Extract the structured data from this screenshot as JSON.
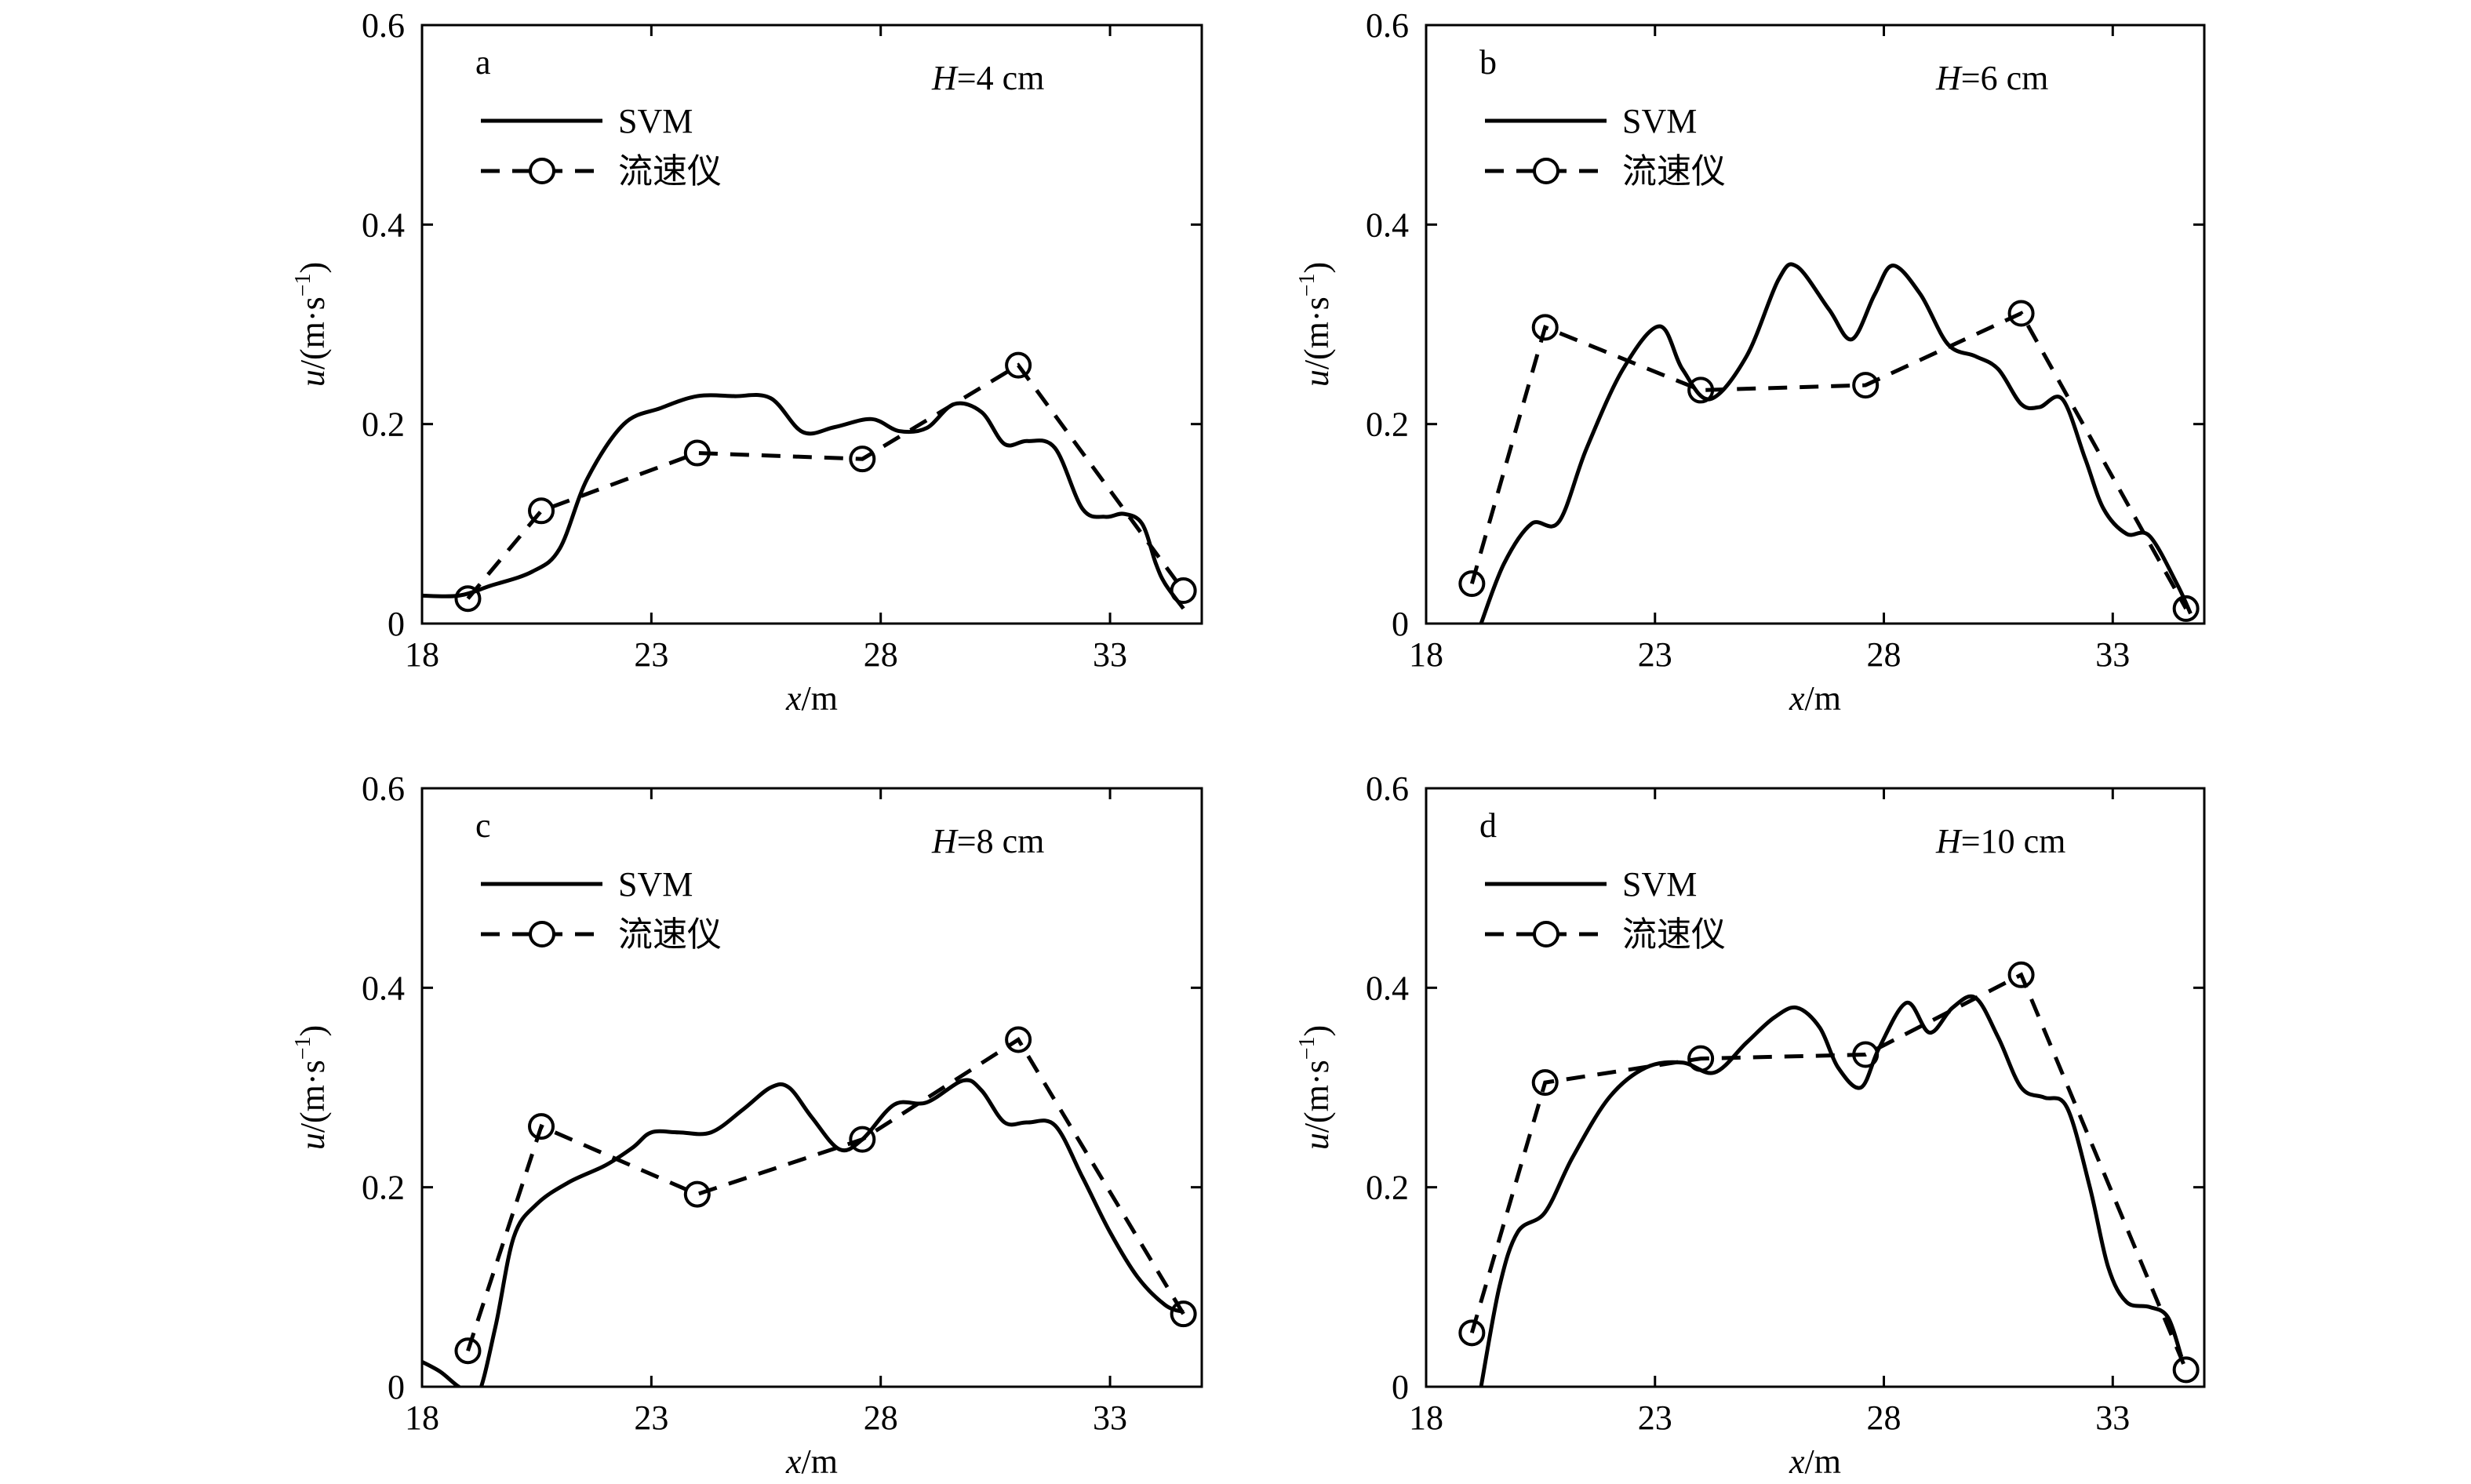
{
  "chart_data": [
    {
      "type": "line",
      "panel_label": "a",
      "annotation": {
        "var": "H",
        "text": "=4 cm"
      },
      "xlabel": {
        "var": "x",
        "unit": "/m"
      },
      "ylabel": {
        "var": "u",
        "unit": "/(m·s",
        "sup": "−1",
        "close": ")"
      },
      "xlim": [
        18,
        35
      ],
      "ylim": [
        0,
        0.6
      ],
      "xticks": [
        "18",
        "23",
        "28",
        "33"
      ],
      "xtick_values": [
        18,
        23,
        28,
        33
      ],
      "yticks": [
        "0",
        "0.2",
        "0.4",
        "0.6"
      ],
      "ytick_values": [
        0,
        0.2,
        0.4,
        0.6
      ],
      "legend": {
        "placement": "top-left",
        "entries": [
          "SVM",
          "流速仪"
        ]
      },
      "series": [
        {
          "name": "SVM",
          "style": "solid",
          "x": [
            18.0,
            18.8,
            19.5,
            20.4,
            21.0,
            21.6,
            22.4,
            23.2,
            24.0,
            24.8,
            25.6,
            26.3,
            27.0,
            27.8,
            28.4,
            29.0,
            29.6,
            30.2,
            30.7,
            31.2,
            31.8,
            32.4,
            32.9,
            33.3,
            33.7,
            34.0,
            34.2,
            34.6
          ],
          "y": [
            0.028,
            0.028,
            0.038,
            0.052,
            0.075,
            0.145,
            0.2,
            0.216,
            0.228,
            0.228,
            0.226,
            0.192,
            0.197,
            0.205,
            0.193,
            0.196,
            0.22,
            0.212,
            0.18,
            0.183,
            0.176,
            0.115,
            0.107,
            0.11,
            0.1,
            0.06,
            0.04,
            0.015
          ]
        },
        {
          "name": "流速仪",
          "style": "dashed",
          "marker": "circle",
          "x": [
            19.0,
            20.6,
            24.0,
            27.6,
            31.0,
            34.6
          ],
          "y": [
            0.025,
            0.113,
            0.171,
            0.165,
            0.259,
            0.033
          ]
        }
      ]
    },
    {
      "type": "line",
      "panel_label": "b",
      "annotation": {
        "var": "H",
        "text": "=6 cm"
      },
      "xlabel": {
        "var": "x",
        "unit": "/m"
      },
      "ylabel": {
        "var": "u",
        "unit": "/(m·s",
        "sup": "−1",
        "close": ")"
      },
      "xlim": [
        18,
        35
      ],
      "ylim": [
        0,
        0.6
      ],
      "xticks": [
        "18",
        "23",
        "28",
        "33"
      ],
      "xtick_values": [
        18,
        23,
        28,
        33
      ],
      "yticks": [
        "0",
        "0.2",
        "0.4",
        "0.6"
      ],
      "ytick_values": [
        0,
        0.2,
        0.4,
        0.6
      ],
      "legend": {
        "placement": "top-left",
        "entries": [
          "SVM",
          "流速仪"
        ]
      },
      "series": [
        {
          "name": "SVM",
          "style": "solid",
          "x": [
            19.2,
            19.7,
            20.3,
            20.9,
            21.5,
            22.3,
            23.1,
            23.6,
            24.2,
            25.0,
            25.7,
            26.1,
            26.8,
            27.3,
            27.8,
            28.2,
            28.8,
            29.4,
            30.0,
            30.5,
            31.0,
            31.4,
            31.9,
            32.4,
            32.8,
            33.3,
            33.8,
            34.4,
            34.7
          ],
          "y": [
            0.0,
            0.06,
            0.1,
            0.102,
            0.175,
            0.255,
            0.298,
            0.255,
            0.225,
            0.268,
            0.345,
            0.358,
            0.315,
            0.285,
            0.33,
            0.359,
            0.33,
            0.28,
            0.268,
            0.255,
            0.22,
            0.217,
            0.225,
            0.165,
            0.115,
            0.09,
            0.088,
            0.04,
            0.01
          ]
        },
        {
          "name": "流速仪",
          "style": "dashed",
          "marker": "circle",
          "x": [
            19.0,
            20.6,
            24.0,
            27.6,
            31.0,
            34.6
          ],
          "y": [
            0.04,
            0.297,
            0.234,
            0.239,
            0.311,
            0.015
          ]
        }
      ]
    },
    {
      "type": "line",
      "panel_label": "c",
      "annotation": {
        "var": "H",
        "text": "=8 cm"
      },
      "xlabel": {
        "var": "x",
        "unit": "/m"
      },
      "ylabel": {
        "var": "u",
        "unit": "/(m·s",
        "sup": "−1",
        "close": ")"
      },
      "xlim": [
        18,
        35
      ],
      "ylim": [
        0,
        0.6
      ],
      "xticks": [
        "18",
        "23",
        "28",
        "33"
      ],
      "xtick_values": [
        18,
        23,
        28,
        33
      ],
      "yticks": [
        "0",
        "0.2",
        "0.4",
        "0.6"
      ],
      "ytick_values": [
        0,
        0.2,
        0.4,
        0.6
      ],
      "legend": {
        "placement": "top-left",
        "entries": [
          "SVM",
          "流速仪"
        ]
      },
      "series": [
        {
          "name": "SVM",
          "style": "solid",
          "x": [
            18.0,
            18.4,
            18.8,
            19.2,
            19.6,
            20.0,
            20.5,
            21.2,
            22.0,
            22.6,
            23.0,
            23.6,
            24.3,
            25.0,
            25.6,
            26.0,
            26.5,
            27.1,
            27.6,
            28.3,
            29.0,
            29.8,
            30.2,
            30.7,
            31.2,
            31.8,
            32.4,
            33.0,
            33.6,
            34.2,
            34.6
          ],
          "y": [
            0.025,
            0.015,
            0.0,
            -0.01,
            0.06,
            0.15,
            0.183,
            0.205,
            0.222,
            0.24,
            0.255,
            0.255,
            0.255,
            0.278,
            0.3,
            0.3,
            0.27,
            0.238,
            0.248,
            0.283,
            0.285,
            0.307,
            0.297,
            0.265,
            0.265,
            0.262,
            0.21,
            0.155,
            0.11,
            0.082,
            0.075
          ]
        },
        {
          "name": "流速仪",
          "style": "dashed",
          "marker": "circle",
          "x": [
            19.0,
            20.6,
            24.0,
            27.6,
            31.0,
            34.6
          ],
          "y": [
            0.036,
            0.261,
            0.193,
            0.248,
            0.348,
            0.073
          ]
        }
      ]
    },
    {
      "type": "line",
      "panel_label": "d",
      "annotation": {
        "var": "H",
        "text": "=10 cm"
      },
      "xlabel": {
        "var": "x",
        "unit": "/m"
      },
      "ylabel": {
        "var": "u",
        "unit": "/(m·s",
        "sup": "−1",
        "close": ")"
      },
      "xlim": [
        18,
        35
      ],
      "ylim": [
        0,
        0.6
      ],
      "xticks": [
        "18",
        "23",
        "28",
        "33"
      ],
      "xtick_values": [
        18,
        23,
        28,
        33
      ],
      "yticks": [
        "0",
        "0.2",
        "0.4",
        "0.6"
      ],
      "ytick_values": [
        0,
        0.2,
        0.4,
        0.6
      ],
      "legend": {
        "placement": "top-left",
        "entries": [
          "SVM",
          "流速仪"
        ]
      },
      "series": [
        {
          "name": "SVM",
          "style": "solid",
          "x": [
            19.2,
            19.6,
            20.0,
            20.6,
            21.2,
            22.0,
            22.8,
            23.6,
            24.3,
            25.0,
            25.6,
            26.1,
            26.6,
            27.0,
            27.5,
            27.9,
            28.5,
            29.0,
            29.5,
            30.0,
            30.5,
            31.0,
            31.5,
            32.0,
            32.5,
            32.9,
            33.3,
            33.8,
            34.2,
            34.5
          ],
          "y": [
            0.0,
            0.1,
            0.155,
            0.175,
            0.23,
            0.29,
            0.32,
            0.325,
            0.315,
            0.345,
            0.37,
            0.38,
            0.36,
            0.32,
            0.3,
            0.34,
            0.385,
            0.355,
            0.38,
            0.39,
            0.35,
            0.3,
            0.29,
            0.28,
            0.2,
            0.12,
            0.085,
            0.08,
            0.07,
            0.03
          ]
        },
        {
          "name": "流速仪",
          "style": "dashed",
          "marker": "circle",
          "x": [
            19.0,
            20.6,
            24.0,
            27.6,
            31.0,
            34.6
          ],
          "y": [
            0.054,
            0.305,
            0.329,
            0.333,
            0.413,
            0.017
          ]
        }
      ]
    }
  ]
}
